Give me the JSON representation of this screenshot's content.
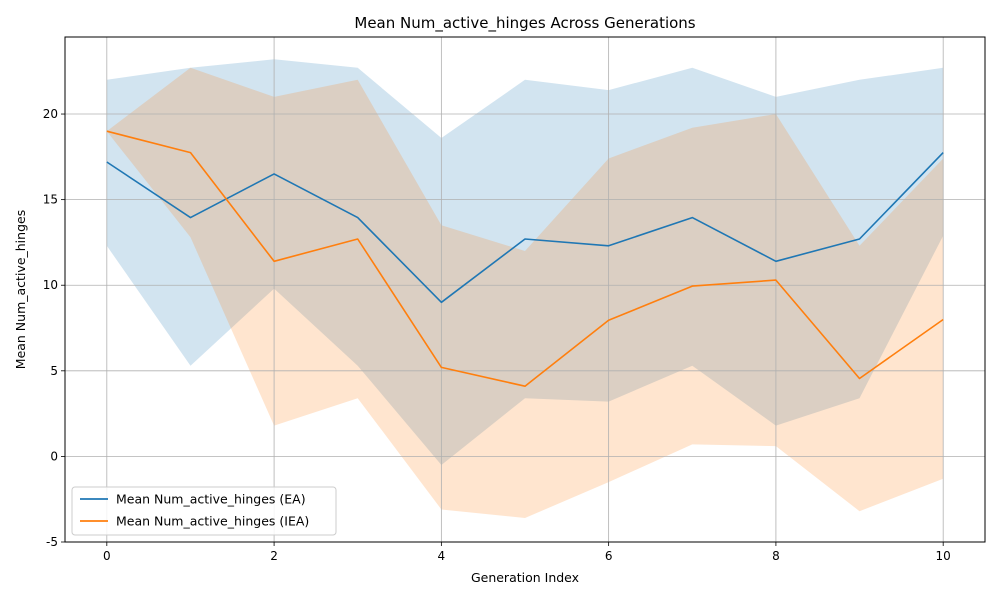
{
  "chart_data": {
    "type": "line",
    "title": "Mean Num_active_hinges Across Generations",
    "xlabel": "Generation Index",
    "ylabel": "Mean Num_active_hinges",
    "x": [
      0,
      1,
      2,
      3,
      4,
      5,
      6,
      7,
      8,
      9,
      10
    ],
    "xlim": [
      -0.5,
      10.5
    ],
    "ylim": [
      -5,
      24.5
    ],
    "xticks": [
      "0",
      "2",
      "4",
      "6",
      "8",
      "10"
    ],
    "yticks": [
      "-5",
      "0",
      "5",
      "10",
      "15",
      "20"
    ],
    "grid": true,
    "legend_position": "lower-left",
    "series": [
      {
        "name": "Mean Num_active_hinges (EA)",
        "color": "#1f77b4",
        "values": [
          17.2,
          13.95,
          16.5,
          13.95,
          9.0,
          12.7,
          12.3,
          13.95,
          11.4,
          12.7,
          17.75
        ],
        "upper": [
          22.0,
          22.7,
          23.2,
          22.7,
          18.6,
          22.0,
          21.4,
          22.7,
          21.0,
          22.0,
          22.7
        ],
        "lower": [
          12.3,
          5.3,
          9.8,
          5.3,
          -0.5,
          3.4,
          3.2,
          5.3,
          1.8,
          3.4,
          12.9
        ]
      },
      {
        "name": "Mean Num_active_hinges (IEA)",
        "color": "#ff7f0e",
        "values": [
          19.0,
          17.75,
          11.4,
          12.7,
          5.2,
          4.1,
          7.95,
          9.95,
          10.3,
          4.55,
          8.0
        ],
        "upper": [
          19.0,
          22.7,
          21.0,
          22.0,
          13.5,
          12.0,
          17.4,
          19.2,
          20.0,
          12.3,
          17.4
        ],
        "lower": [
          19.0,
          12.8,
          1.8,
          3.4,
          -3.1,
          -3.6,
          -1.5,
          0.7,
          0.6,
          -3.2,
          -1.3
        ]
      }
    ]
  }
}
